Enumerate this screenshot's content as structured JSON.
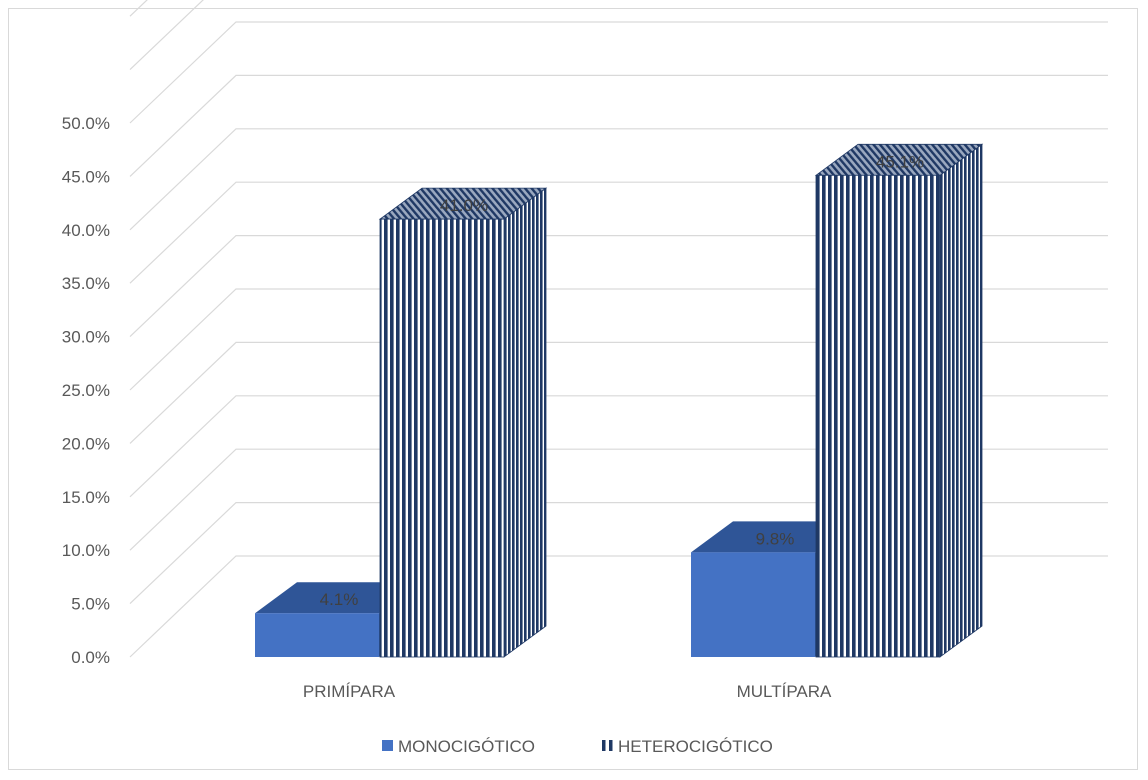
{
  "chart_data": {
    "type": "bar",
    "style": "3d-clustered-column",
    "categories": [
      "PRIMÍPARA",
      "MULTÍPARA"
    ],
    "series": [
      {
        "name": "MONOCIGÓTICO",
        "values": [
          4.1,
          9.8
        ],
        "labels": [
          "4.1%",
          "9.8%"
        ],
        "color": "#4472c4",
        "pattern": "solid"
      },
      {
        "name": "HETEROCIGÓTICO",
        "values": [
          41.0,
          45.1
        ],
        "labels": [
          "41.0%",
          "45.1%"
        ],
        "color": "#1f3864",
        "pattern": "vertical-stripes"
      }
    ],
    "yticks": [
      "0.0%",
      "5.0%",
      "10.0%",
      "15.0%",
      "20.0%",
      "25.0%",
      "30.0%",
      "35.0%",
      "40.0%",
      "45.0%",
      "50.0%"
    ],
    "ylim": [
      0,
      50
    ],
    "grid": true,
    "legend": "bottom",
    "title": "",
    "xlabel": "",
    "ylabel": ""
  }
}
